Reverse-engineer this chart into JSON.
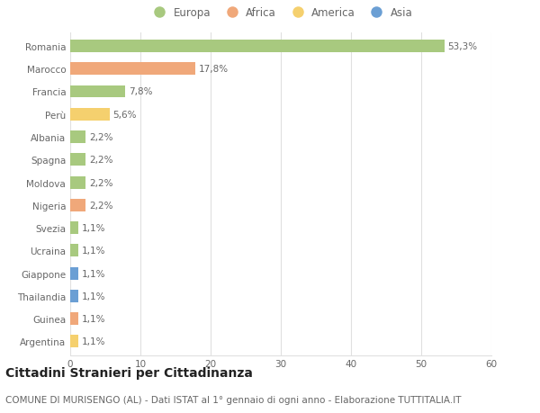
{
  "categories": [
    "Romania",
    "Marocco",
    "Francia",
    "Perù",
    "Albania",
    "Spagna",
    "Moldova",
    "Nigeria",
    "Svezia",
    "Ucraina",
    "Giappone",
    "Thailandia",
    "Guinea",
    "Argentina"
  ],
  "values": [
    53.3,
    17.8,
    7.8,
    5.6,
    2.2,
    2.2,
    2.2,
    2.2,
    1.1,
    1.1,
    1.1,
    1.1,
    1.1,
    1.1
  ],
  "labels": [
    "53,3%",
    "17,8%",
    "7,8%",
    "5,6%",
    "2,2%",
    "2,2%",
    "2,2%",
    "2,2%",
    "1,1%",
    "1,1%",
    "1,1%",
    "1,1%",
    "1,1%",
    "1,1%"
  ],
  "continents": [
    "Europa",
    "Africa",
    "Europa",
    "America",
    "Europa",
    "Europa",
    "Europa",
    "Africa",
    "Europa",
    "Europa",
    "Asia",
    "Asia",
    "Africa",
    "America"
  ],
  "continent_colors": {
    "Europa": "#a8c97f",
    "Africa": "#f0a87a",
    "America": "#f5d06e",
    "Asia": "#6b9fd4"
  },
  "legend_order": [
    "Europa",
    "Africa",
    "America",
    "Asia"
  ],
  "xlim": [
    0,
    60
  ],
  "xticks": [
    0,
    10,
    20,
    30,
    40,
    50,
    60
  ],
  "title": "Cittadini Stranieri per Cittadinanza",
  "subtitle": "COMUNE DI MURISENGO (AL) - Dati ISTAT al 1° gennaio di ogni anno - Elaborazione TUTTITALIA.IT",
  "background_color": "#ffffff",
  "grid_color": "#e0e0e0",
  "bar_height": 0.55,
  "title_fontsize": 10,
  "subtitle_fontsize": 7.5,
  "label_fontsize": 7.5,
  "tick_fontsize": 7.5,
  "legend_fontsize": 8.5
}
